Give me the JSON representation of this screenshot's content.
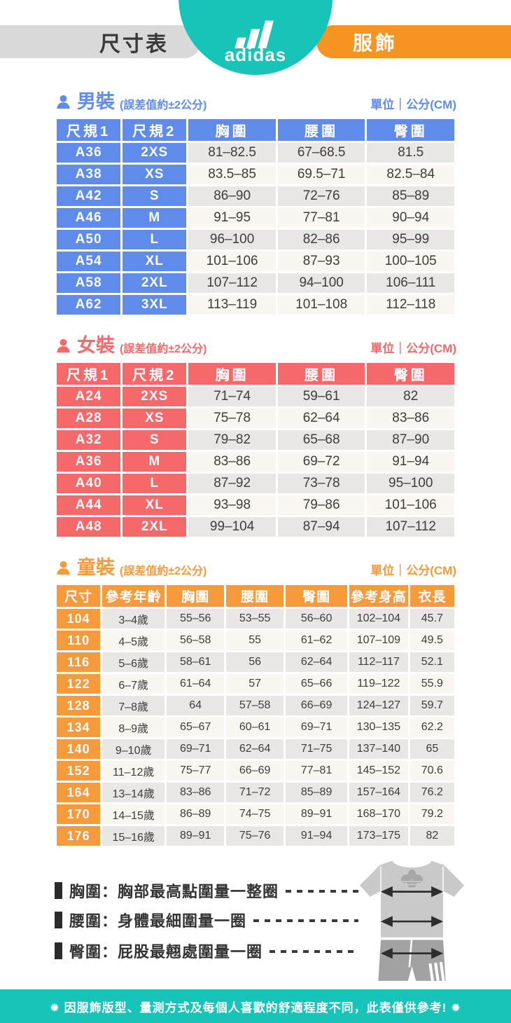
{
  "header": {
    "left_pill_label": "尺寸表",
    "brand": "adidas",
    "right_pill_label": "服飾",
    "badge_color": "#17c4b9",
    "right_pill_color": "#f69423"
  },
  "sections": [
    {
      "id": "mens",
      "title": "男裝",
      "tolerance": "(誤差值約±2公分)",
      "unit": "單位｜公分(CM)",
      "accent": "#5f8ceb",
      "label_cols": 2,
      "columns": [
        "尺規1",
        "尺規2",
        "胸圍",
        "腰圍",
        "臀圍"
      ],
      "rows": [
        [
          "A36",
          "2XS",
          "81–82.5",
          "67–68.5",
          "81.5"
        ],
        [
          "A38",
          "XS",
          "83.5–85",
          "69.5–71",
          "82.5–84"
        ],
        [
          "A42",
          "S",
          "86–90",
          "72–76",
          "85–89"
        ],
        [
          "A46",
          "M",
          "91–95",
          "77–81",
          "90–94"
        ],
        [
          "A50",
          "L",
          "96–100",
          "82–86",
          "95–99"
        ],
        [
          "A54",
          "XL",
          "101–106",
          "87–93",
          "100–105"
        ],
        [
          "A58",
          "2XL",
          "107–112",
          "94–100",
          "106–111"
        ],
        [
          "A62",
          "3XL",
          "113–119",
          "101–108",
          "112–118"
        ]
      ]
    },
    {
      "id": "womens",
      "title": "女裝",
      "tolerance": "(誤差值約±2公分)",
      "unit": "單位｜公分(CM)",
      "accent": "#f6696a",
      "label_cols": 2,
      "columns": [
        "尺規1",
        "尺規2",
        "胸圍",
        "腰圍",
        "臀圍"
      ],
      "rows": [
        [
          "A24",
          "2XS",
          "71–74",
          "59–61",
          "82"
        ],
        [
          "A28",
          "XS",
          "75–78",
          "62–64",
          "83–86"
        ],
        [
          "A32",
          "S",
          "79–82",
          "65–68",
          "87–90"
        ],
        [
          "A36",
          "M",
          "83–86",
          "69–72",
          "91–94"
        ],
        [
          "A40",
          "L",
          "87–92",
          "73–78",
          "95–100"
        ],
        [
          "A44",
          "XL",
          "93–98",
          "79–86",
          "101–106"
        ],
        [
          "A48",
          "2XL",
          "99–104",
          "87–94",
          "107–112"
        ]
      ]
    },
    {
      "id": "kids",
      "title": "童裝",
      "tolerance": "(誤差值約±2公分)",
      "unit": "單位｜公分(CM)",
      "accent": "#f79a3c",
      "label_cols": 1,
      "columns": [
        "尺寸",
        "參考年齡",
        "胸圍",
        "腰圍",
        "臀圍",
        "參考身高",
        "衣長"
      ],
      "rows": [
        [
          "104",
          "3–4歲",
          "55–56",
          "53–55",
          "56–60",
          "102–104",
          "45.7"
        ],
        [
          "110",
          "4–5歲",
          "56–58",
          "55",
          "61–62",
          "107–109",
          "49.5"
        ],
        [
          "116",
          "5–6歲",
          "58–61",
          "56",
          "62–64",
          "112–117",
          "52.1"
        ],
        [
          "122",
          "6–7歲",
          "61–64",
          "57",
          "65–66",
          "119–122",
          "55.9"
        ],
        [
          "128",
          "7–8歲",
          "64",
          "57–58",
          "66–69",
          "124–127",
          "59.7"
        ],
        [
          "134",
          "8–9歲",
          "65–67",
          "60–61",
          "69–71",
          "130–135",
          "62.2"
        ],
        [
          "140",
          "9–10歲",
          "69–71",
          "62–64",
          "71–75",
          "137–140",
          "65"
        ],
        [
          "152",
          "11–12歲",
          "75–77",
          "66–69",
          "77–81",
          "145–152",
          "70.6"
        ],
        [
          "164",
          "13–14歲",
          "83–86",
          "71–72",
          "85–89",
          "157–164",
          "76.2"
        ],
        [
          "170",
          "14–15歲",
          "86–89",
          "74–75",
          "89–91",
          "168–170",
          "79.2"
        ],
        [
          "176",
          "15–16歲",
          "89–91",
          "75–76",
          "91–94",
          "173–175",
          "82"
        ]
      ]
    }
  ],
  "legend": [
    {
      "text": "胸圍：胸部最高點圍量一整圈"
    },
    {
      "text": "腰圍：身體最細圍量一圈"
    },
    {
      "text": "臀圍：屁股最翹處圍量一圈"
    }
  ],
  "footer": {
    "note": "✹ 因服飾版型、量測方式及每個人喜歡的舒適程度不同，此表僅供參考! ✹",
    "bar_color": "#17c4b9"
  }
}
